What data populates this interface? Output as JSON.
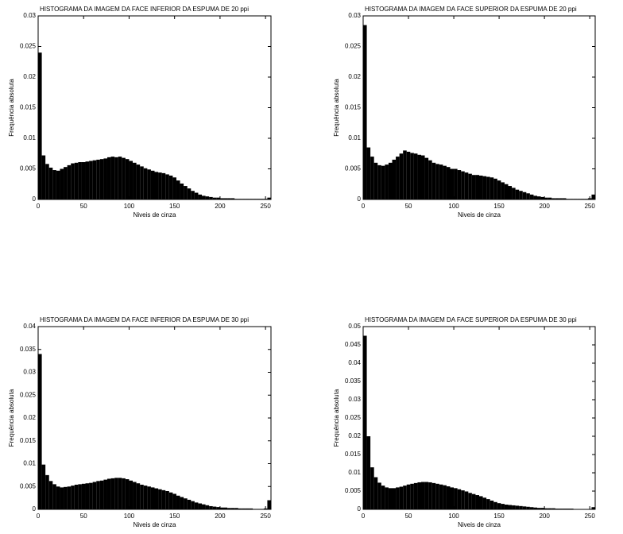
{
  "chart_data": [
    {
      "type": "histogram",
      "title": "HISTOGRAMA DA IMAGEM DA FACE INFERIOR DA ESPUMA DE 20 ppi",
      "xlabel": "Niveis de cinza",
      "ylabel": "Frequência absoluta",
      "color": "#000000",
      "bins": [
        0,
        4,
        8,
        12,
        16,
        20,
        24,
        28,
        32,
        36,
        40,
        44,
        48,
        52,
        56,
        60,
        64,
        68,
        72,
        76,
        80,
        84,
        88,
        92,
        96,
        100,
        104,
        108,
        112,
        116,
        120,
        124,
        128,
        132,
        136,
        140,
        144,
        148,
        152,
        156,
        160,
        164,
        168,
        172,
        176,
        180,
        184,
        188,
        192,
        196,
        200,
        204,
        208,
        212,
        216,
        220,
        224,
        228,
        232,
        236,
        240,
        244,
        248,
        252,
        256
      ],
      "counts": [
        0.024,
        0.0072,
        0.0058,
        0.0052,
        0.0048,
        0.0047,
        0.005,
        0.0053,
        0.0056,
        0.0059,
        0.006,
        0.0061,
        0.0061,
        0.0062,
        0.0063,
        0.0064,
        0.0065,
        0.0066,
        0.0067,
        0.0069,
        0.007,
        0.0069,
        0.007,
        0.0068,
        0.0066,
        0.0063,
        0.006,
        0.0057,
        0.0054,
        0.0051,
        0.0049,
        0.0047,
        0.0045,
        0.0044,
        0.0043,
        0.0041,
        0.0039,
        0.0036,
        0.0031,
        0.0026,
        0.0022,
        0.0018,
        0.0014,
        0.0011,
        0.0008,
        0.0006,
        0.0005,
        0.0004,
        0.0003,
        0.0003,
        0.0002,
        0.0002,
        0.0002,
        0.0002,
        0.0001,
        0.0001,
        0.0001,
        0.0001,
        0.0001,
        0.0001,
        0.0001,
        0.0001,
        0.0001,
        0.0003
      ],
      "xlim": [
        0,
        256
      ],
      "xticks": [
        0,
        50,
        100,
        150,
        200,
        250
      ],
      "ylim": [
        0,
        0.03
      ],
      "yticks": [
        0,
        0.005,
        0.01,
        0.015,
        0.02,
        0.025,
        0.03
      ]
    },
    {
      "type": "histogram",
      "title": "HISTOGRAMA DA IMAGEM DA FACE SUPERIOR DA ESPUMA DE 20 ppi",
      "xlabel": "Niveis de cinza",
      "ylabel": "Frequência absoluta",
      "color": "#000000",
      "bins": [
        0,
        4,
        8,
        12,
        16,
        20,
        24,
        28,
        32,
        36,
        40,
        44,
        48,
        52,
        56,
        60,
        64,
        68,
        72,
        76,
        80,
        84,
        88,
        92,
        96,
        100,
        104,
        108,
        112,
        116,
        120,
        124,
        128,
        132,
        136,
        140,
        144,
        148,
        152,
        156,
        160,
        164,
        168,
        172,
        176,
        180,
        184,
        188,
        192,
        196,
        200,
        204,
        208,
        212,
        216,
        220,
        224,
        228,
        232,
        236,
        240,
        244,
        248,
        252,
        256
      ],
      "counts": [
        0.0285,
        0.0085,
        0.007,
        0.006,
        0.0056,
        0.0055,
        0.0057,
        0.006,
        0.0065,
        0.007,
        0.0075,
        0.008,
        0.0078,
        0.0076,
        0.0075,
        0.0073,
        0.0072,
        0.0068,
        0.0064,
        0.006,
        0.0058,
        0.0057,
        0.0055,
        0.0053,
        0.005,
        0.005,
        0.0048,
        0.0046,
        0.0044,
        0.0042,
        0.004,
        0.004,
        0.0039,
        0.0038,
        0.0037,
        0.0036,
        0.0034,
        0.0031,
        0.0028,
        0.0025,
        0.0022,
        0.0019,
        0.0016,
        0.0014,
        0.0012,
        0.001,
        0.0008,
        0.0006,
        0.0005,
        0.0004,
        0.0003,
        0.0003,
        0.0002,
        0.0002,
        0.0002,
        0.0002,
        0.0001,
        0.0001,
        0.0001,
        0.0001,
        0.0001,
        0.0001,
        0.0002,
        0.0008
      ],
      "xlim": [
        0,
        256
      ],
      "xticks": [
        0,
        50,
        100,
        150,
        200,
        250
      ],
      "ylim": [
        0,
        0.03
      ],
      "yticks": [
        0,
        0.005,
        0.01,
        0.015,
        0.02,
        0.025,
        0.03
      ]
    },
    {
      "type": "histogram",
      "title": "HISTOGRAMA DA IMAGEM DA FACE INFERIOR DA ESPUMA DE 30 ppi",
      "xlabel": "Niveis de cinza",
      "ylabel": "Frequência absoluta",
      "color": "#000000",
      "bins": [
        0,
        4,
        8,
        12,
        16,
        20,
        24,
        28,
        32,
        36,
        40,
        44,
        48,
        52,
        56,
        60,
        64,
        68,
        72,
        76,
        80,
        84,
        88,
        92,
        96,
        100,
        104,
        108,
        112,
        116,
        120,
        124,
        128,
        132,
        136,
        140,
        144,
        148,
        152,
        156,
        160,
        164,
        168,
        172,
        176,
        180,
        184,
        188,
        192,
        196,
        200,
        204,
        208,
        212,
        216,
        220,
        224,
        228,
        232,
        236,
        240,
        244,
        248,
        252,
        256
      ],
      "counts": [
        0.034,
        0.0098,
        0.0075,
        0.0062,
        0.0055,
        0.005,
        0.0048,
        0.0049,
        0.005,
        0.0052,
        0.0054,
        0.0055,
        0.0056,
        0.0057,
        0.0058,
        0.006,
        0.0062,
        0.0063,
        0.0065,
        0.0067,
        0.0068,
        0.0069,
        0.0069,
        0.0068,
        0.0066,
        0.0063,
        0.006,
        0.0057,
        0.0054,
        0.0052,
        0.005,
        0.0048,
        0.0046,
        0.0044,
        0.0042,
        0.004,
        0.0037,
        0.0034,
        0.003,
        0.0027,
        0.0024,
        0.0021,
        0.0018,
        0.0015,
        0.0013,
        0.0011,
        0.0009,
        0.0007,
        0.0006,
        0.0005,
        0.0004,
        0.0004,
        0.0003,
        0.0003,
        0.0003,
        0.0002,
        0.0002,
        0.0002,
        0.0002,
        0.0001,
        0.0001,
        0.0001,
        0.0002,
        0.002
      ],
      "xlim": [
        0,
        256
      ],
      "xticks": [
        0,
        50,
        100,
        150,
        200,
        250
      ],
      "ylim": [
        0,
        0.04
      ],
      "yticks": [
        0,
        0.005,
        0.01,
        0.015,
        0.02,
        0.025,
        0.03,
        0.035,
        0.04
      ]
    },
    {
      "type": "histogram",
      "title": "HISTOGRAMA DA IMAGEM DA FACE SUPERIOR DA ESPUMA DE 30 ppi",
      "xlabel": "Niveis de cinza",
      "ylabel": "Frequência absoluta",
      "color": "#000000",
      "bins": [
        0,
        4,
        8,
        12,
        16,
        20,
        24,
        28,
        32,
        36,
        40,
        44,
        48,
        52,
        56,
        60,
        64,
        68,
        72,
        76,
        80,
        84,
        88,
        92,
        96,
        100,
        104,
        108,
        112,
        116,
        120,
        124,
        128,
        132,
        136,
        140,
        144,
        148,
        152,
        156,
        160,
        164,
        168,
        172,
        176,
        180,
        184,
        188,
        192,
        196,
        200,
        204,
        208,
        212,
        216,
        220,
        224,
        228,
        232,
        236,
        240,
        244,
        248,
        252,
        256
      ],
      "counts": [
        0.0475,
        0.02,
        0.0115,
        0.0088,
        0.0073,
        0.0065,
        0.006,
        0.0058,
        0.0058,
        0.006,
        0.0062,
        0.0065,
        0.0068,
        0.007,
        0.0072,
        0.0074,
        0.0075,
        0.0075,
        0.0074,
        0.0072,
        0.007,
        0.0068,
        0.0066,
        0.0063,
        0.006,
        0.0058,
        0.0055,
        0.0052,
        0.0049,
        0.0045,
        0.0042,
        0.0039,
        0.0036,
        0.0032,
        0.0028,
        0.0024,
        0.002,
        0.0017,
        0.0015,
        0.0013,
        0.0012,
        0.0011,
        0.001,
        0.0009,
        0.0008,
        0.0007,
        0.0006,
        0.0005,
        0.0004,
        0.0004,
        0.0003,
        0.0003,
        0.0003,
        0.0002,
        0.0002,
        0.0002,
        0.0002,
        0.0002,
        0.0001,
        0.0001,
        0.0001,
        0.0001,
        0.0001,
        0.0006
      ],
      "xlim": [
        0,
        256
      ],
      "xticks": [
        0,
        50,
        100,
        150,
        200,
        250
      ],
      "ylim": [
        0,
        0.05
      ],
      "yticks": [
        0,
        0.005,
        0.01,
        0.015,
        0.02,
        0.025,
        0.03,
        0.035,
        0.04,
        0.045,
        0.05
      ]
    }
  ]
}
